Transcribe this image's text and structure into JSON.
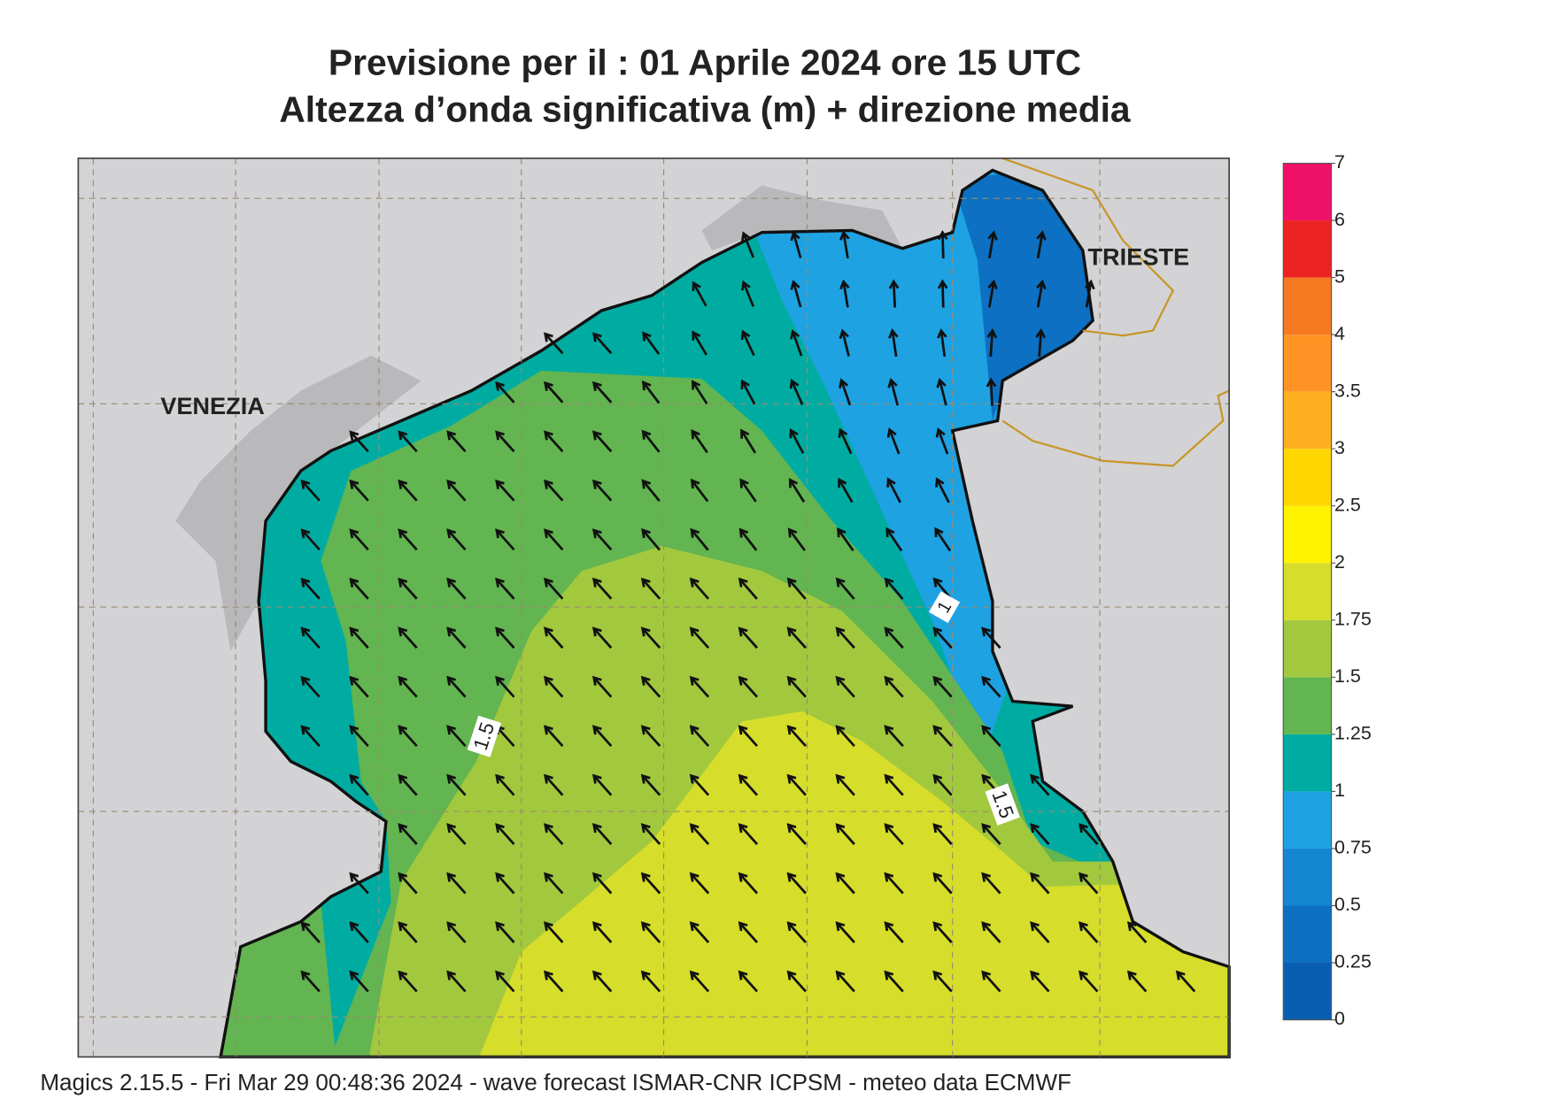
{
  "title": [
    "Previsione per il  :  01   Aprile  2024   ore 15 UTC",
    "Altezza d’onda significativa (m) + direzione media"
  ],
  "place_labels": [
    "VENEZIA",
    "TRIESTE"
  ],
  "contour_labels": [
    1.5,
    1.5,
    1
  ],
  "colorbar": {
    "ticks": [
      0,
      0.25,
      0.5,
      0.75,
      1,
      1.25,
      1.5,
      1.75,
      2,
      2.5,
      3,
      3.5,
      4,
      5,
      6,
      7
    ],
    "colors": [
      "#0a5eb2",
      "#0d70c2",
      "#1587d2",
      "#1ea2e2",
      "#00aca2",
      "#62b550",
      "#a2c83e",
      "#d6dd2a",
      "#fff200",
      "#ffd700",
      "#ffb020",
      "#ff9424",
      "#f57a22",
      "#ec2222",
      "#ef1068"
    ]
  },
  "footer": "Magics 2.15.5 - Fri Mar 29 00:48:36 2024 - wave forecast  ISMAR-CNR  ICPSM - meteo data    ECMWF"
}
